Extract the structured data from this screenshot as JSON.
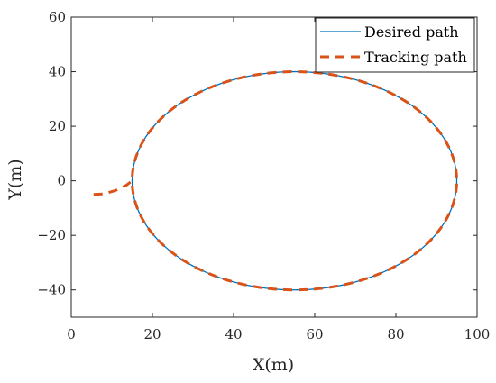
{
  "chart_data": {
    "type": "line",
    "title": "",
    "xlabel": "X(m)",
    "ylabel": "Y(m)",
    "xlim": [
      0,
      100
    ],
    "ylim": [
      -50,
      60
    ],
    "xticks": [
      0,
      20,
      40,
      60,
      80,
      100
    ],
    "yticks": [
      -40,
      -20,
      0,
      20,
      40,
      60
    ],
    "grid": false,
    "legend_position": "top-right",
    "series": [
      {
        "name": "Desired path",
        "style": "solid",
        "color": "#0072BD",
        "shape": "ellipse",
        "center": [
          55,
          0
        ],
        "radius_x": 40,
        "radius_y": 40
      },
      {
        "name": "Tracking path",
        "style": "dashed",
        "color": "#D95319",
        "approach_points": [
          [
            5.5,
            -5
          ],
          [
            8,
            -4.8
          ],
          [
            11,
            -3.5
          ],
          [
            13.5,
            -1.7
          ],
          [
            15,
            0
          ]
        ],
        "then_follows": "Desired path"
      }
    ]
  }
}
